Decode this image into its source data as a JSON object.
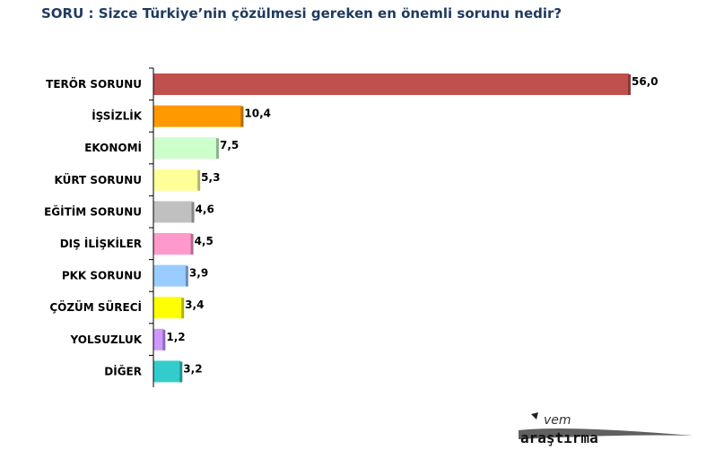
{
  "title": "SORU : Sizce Türkiye’nin çözülmesi gereken en önemli sorunu nedir?",
  "logo": {
    "top": "vem",
    "bottom": "araştırma"
  },
  "chart_data": {
    "type": "bar",
    "orientation": "horizontal",
    "categories": [
      "TERÖR SORUNU",
      "İŞSİZLİK",
      "EKONOMİ",
      "KÜRT SORUNU",
      "EĞİTİM SORUNU",
      "DIŞ İLİŞKİLER",
      "PKK SORUNU",
      "ÇÖZÜM SÜRECİ",
      "YOLSUZLUK",
      "DİĞER"
    ],
    "values": [
      56.0,
      10.4,
      7.5,
      5.3,
      4.6,
      4.5,
      3.9,
      3.4,
      1.2,
      3.2
    ],
    "value_labels": [
      "56,0",
      "10,4",
      "7,5",
      "5,3",
      "4,6",
      "4,5",
      "3,9",
      "3,4",
      "1,2",
      "3,2"
    ],
    "colors": [
      "#c0504d",
      "#ff9900",
      "#ccffcc",
      "#ffff99",
      "#c0c0c0",
      "#ff99cc",
      "#99ccff",
      "#ffff00",
      "#cc99ff",
      "#33cccc"
    ],
    "shade_colors": [
      "#8c3a38",
      "#b36b00",
      "#8fb38f",
      "#b3b36b",
      "#868686",
      "#b36b8f",
      "#6b8fb3",
      "#b3b300",
      "#8f6bb3",
      "#248f8f"
    ],
    "grid": false,
    "legend": "none"
  }
}
